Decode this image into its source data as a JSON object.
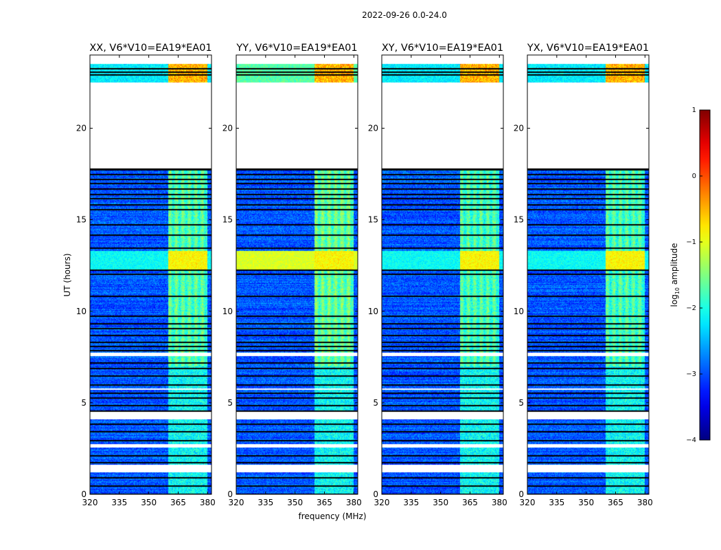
{
  "figure_title": "2022-09-26 0.0-24.0",
  "chart_data": {
    "type": "heatmap",
    "title": "2022-09-26 0.0-24.0",
    "xlabel": "frequency (MHz)",
    "ylabel": "UT (hours)",
    "xlim": [
      320,
      382
    ],
    "ylim": [
      0,
      24
    ],
    "x_ticks": [
      320,
      335,
      350,
      365,
      380
    ],
    "x_tick_labels": [
      "320",
      "335",
      "350",
      "365",
      "380"
    ],
    "y_ticks": [
      0,
      5,
      10,
      15,
      20
    ],
    "y_tick_labels": [
      "0",
      "5",
      "10",
      "15",
      "20"
    ],
    "panels": [
      {
        "title": "XX, V6*V10=EA19*EA01",
        "pol": "XX",
        "rfi_low": -1.75,
        "time_feature": -1.3,
        "bright_top": false
      },
      {
        "title": "YY, V6*V10=EA19*EA01",
        "pol": "YY",
        "rfi_low": -1.65,
        "time_feature": -1.05,
        "bright_top": true
      },
      {
        "title": "XY, V6*V10=EA19*EA01",
        "pol": "XY",
        "rfi_low": -1.8,
        "time_feature": -1.25,
        "bright_top": false
      },
      {
        "title": "YX, V6*V10=EA19*EA01",
        "pol": "YX",
        "rfi_low": -1.8,
        "time_feature": -1.25,
        "bright_top": false
      }
    ],
    "rfi_band_mhz": [
      360,
      380
    ],
    "bright_time_hours": [
      12.6,
      13.2
    ],
    "data_time_ranges_hours": [
      [
        0,
        17.7
      ],
      [
        22.5,
        23.5
      ]
    ],
    "blank_time_ranges_hours": [
      [
        7.55,
        7.75
      ],
      [
        5.7,
        5.8
      ],
      [
        4.1,
        4.5
      ],
      [
        2.55,
        2.75
      ],
      [
        1.2,
        1.6
      ],
      [
        17.85,
        22.45
      ]
    ],
    "flag_lines_hours": [
      0.05,
      0.5,
      0.95,
      1.75,
      2.15,
      2.95,
      3.45,
      3.85,
      4.6,
      4.9,
      5.3,
      5.55,
      6.0,
      6.5,
      6.9,
      7.2,
      7.9,
      8.1,
      8.35,
      8.7,
      9.1,
      9.35,
      9.75,
      10.85,
      12.05,
      12.3,
      13.5,
      14.2,
      14.75,
      15.6,
      15.85,
      16.2,
      16.4,
      16.7,
      17.0,
      17.25,
      17.5,
      17.75,
      17.8,
      22.95,
      23.1,
      23.3
    ],
    "colorbar": {
      "label": "log10 amplitude",
      "label_main": "log",
      "label_sub": "10",
      "label_rest": " amplitude",
      "vmin": -4,
      "vmax": 1,
      "ticks": [
        1,
        0,
        -1,
        -2,
        -3,
        -4
      ],
      "tick_labels": [
        "1",
        "0",
        "−1",
        "−2",
        "−3",
        "−4"
      ],
      "colormap": "jet"
    }
  }
}
